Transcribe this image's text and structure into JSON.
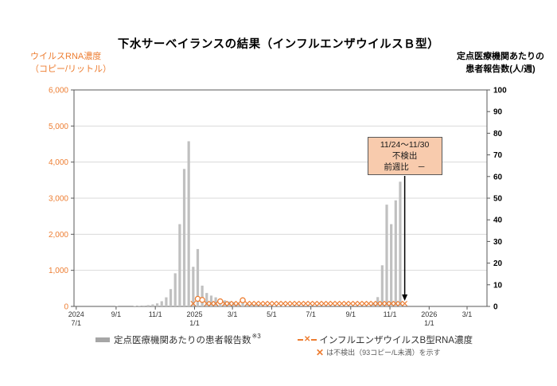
{
  "title": "下水サーベイランスの結果（インフルエンザウイルスＢ型）",
  "axes": {
    "left": {
      "title_line1": "ウイルスRNA濃度",
      "title_line2": "（コピー/リットル）",
      "color": "#ED7D31",
      "ticks": [
        "0",
        "1,000",
        "2,000",
        "3,000",
        "4,000",
        "5,000",
        "6,000"
      ]
    },
    "right": {
      "title_line1": "定点医療機関あたりの",
      "title_line2": "患者報告数(人/週)",
      "ticks": [
        "0",
        "10",
        "20",
        "30",
        "40",
        "50",
        "60",
        "70",
        "80",
        "90",
        "100"
      ]
    }
  },
  "annotation": {
    "line1": "11/24～11/30",
    "line2": "不検出",
    "line3": "前週比　－",
    "week": "2025-11-24",
    "fill": "#F8CBAD",
    "border": "#595959"
  },
  "legend": {
    "bars_label": "定点医療機関あたりの患者報告数",
    "bars_footnote": "※3",
    "rna_label": "インフルエンザウイルスB型RNA濃度",
    "nd_mark": "✕",
    "nd_note": "は不検出（93コピー/L未満）を示す"
  },
  "chart_data": {
    "type": "bar",
    "title": "下水サーベイランスの結果（インフルエンザウイルスＢ型）",
    "left_ylabel": "ウイルスRNA濃度（コピー/リットル）",
    "right_ylabel": "定点医療機関あたりの患者報告数(人/週)",
    "left_ylim": [
      0,
      6000
    ],
    "right_ylim": [
      0,
      100
    ],
    "grid": "horizontal",
    "legend_position": "bottom",
    "x_axis": {
      "start": "2024-06-30",
      "ticks": [
        {
          "d": "2024-07-01",
          "l": [
            "2024",
            "7/1"
          ]
        },
        {
          "d": "2024-09-01",
          "l": [
            "9/1"
          ]
        },
        {
          "d": "2024-11-01",
          "l": [
            "11/1"
          ]
        },
        {
          "d": "2025-01-01",
          "l": [
            "2025",
            "1/1"
          ]
        },
        {
          "d": "2025-03-01",
          "l": [
            "3/1"
          ]
        },
        {
          "d": "2025-05-01",
          "l": [
            "5/1"
          ]
        },
        {
          "d": "2025-07-01",
          "l": [
            "7/1"
          ]
        },
        {
          "d": "2025-09-01",
          "l": [
            "9/1"
          ]
        },
        {
          "d": "2025-11-01",
          "l": [
            "11/1"
          ]
        },
        {
          "d": "2026-01-01",
          "l": [
            "2026",
            "1/1"
          ]
        },
        {
          "d": "2026-03-01",
          "l": [
            "3/1"
          ]
        }
      ]
    },
    "bars": {
      "name": "定点医療機関あたりの患者報告数",
      "axis": "right",
      "unit": "人/週",
      "color": "#C0C0C0",
      "points": [
        [
          "2024-09-02",
          0.15
        ],
        [
          "2024-09-30",
          0.15
        ],
        [
          "2024-10-07",
          0.3
        ],
        [
          "2024-10-14",
          0.4
        ],
        [
          "2024-10-21",
          0.6
        ],
        [
          "2024-10-28",
          0.9
        ],
        [
          "2024-11-04",
          1.4
        ],
        [
          "2024-11-11",
          2.4
        ],
        [
          "2024-11-18",
          4.2
        ],
        [
          "2024-11-25",
          8
        ],
        [
          "2024-12-02",
          15.3
        ],
        [
          "2024-12-09",
          38
        ],
        [
          "2024-12-16",
          63.5
        ],
        [
          "2024-12-23",
          76.3
        ],
        [
          "2024-12-30",
          18.3
        ],
        [
          "2025-01-06",
          26.5
        ],
        [
          "2025-01-13",
          9.6
        ],
        [
          "2025-01-20",
          6.2
        ],
        [
          "2025-01-27",
          5.0
        ],
        [
          "2025-02-03",
          4.2
        ],
        [
          "2025-02-10",
          3.3
        ],
        [
          "2025-02-17",
          2.8
        ],
        [
          "2025-02-24",
          2.3
        ],
        [
          "2025-03-03",
          2.0
        ],
        [
          "2025-03-10",
          1.7
        ],
        [
          "2025-03-17",
          1.5
        ],
        [
          "2025-03-24",
          1.2
        ],
        [
          "2025-03-31",
          1.0
        ],
        [
          "2025-04-07",
          0.8
        ],
        [
          "2025-04-14",
          0.6
        ],
        [
          "2025-04-21",
          0.5
        ],
        [
          "2025-04-28",
          0.4
        ],
        [
          "2025-05-05",
          0.3
        ],
        [
          "2025-05-12",
          0.2
        ],
        [
          "2025-05-19",
          0.2
        ],
        [
          "2025-05-26",
          0.15
        ],
        [
          "2025-09-29",
          0.4
        ],
        [
          "2025-10-06",
          1.5
        ],
        [
          "2025-10-13",
          4.3
        ],
        [
          "2025-10-20",
          19
        ],
        [
          "2025-10-27",
          47
        ],
        [
          "2025-11-03",
          38
        ],
        [
          "2025-11-10",
          49
        ],
        [
          "2025-11-17",
          57.6
        ]
      ]
    },
    "rna": {
      "name": "インフルエンザウイルスB型RNA濃度",
      "axis": "left",
      "unit": "コピー/リットル",
      "color": "#ED7D31",
      "start_week": "2024-12-30",
      "end_week": "2025-11-24",
      "nd_threshold": 93,
      "nd_display_value": 80,
      "detected": {
        "2025-01-06": 210,
        "2025-01-13": 180,
        "2025-02-10": 140,
        "2025-03-17": 170
      }
    }
  }
}
